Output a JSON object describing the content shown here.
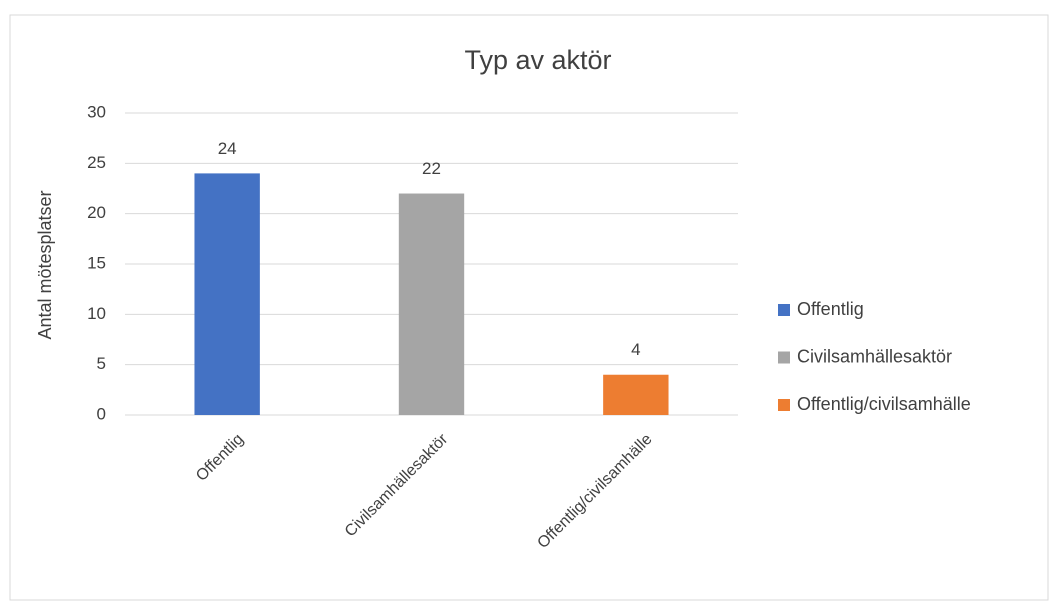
{
  "chart_data": {
    "type": "bar",
    "title": "Typ av aktör",
    "y_label": "Antal mötesplatser",
    "categories": [
      "Offentlig",
      "Civilsamhällesaktör",
      "Offentlig/civilsamhälle"
    ],
    "values": [
      24,
      22,
      4
    ],
    "colors": [
      "#4472c4",
      "#a5a5a5",
      "#ed7d31"
    ],
    "ylim": [
      0,
      30
    ],
    "yticks": [
      0,
      5,
      10,
      15,
      20,
      25,
      30
    ],
    "grid": true,
    "legend": "right"
  }
}
